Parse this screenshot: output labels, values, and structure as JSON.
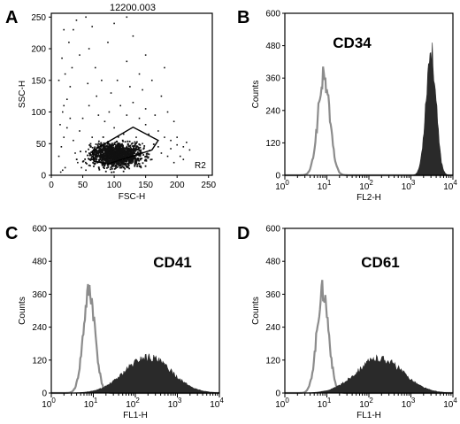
{
  "chart_data": [
    {
      "panel_label": "A",
      "type": "scatter",
      "title": "12200.003",
      "xlabel": "FSC-H",
      "ylabel": "SSC-H",
      "xlim": [
        0,
        256
      ],
      "ylim": [
        0,
        256
      ],
      "x_ticks": [
        "0",
        "50",
        "100",
        "150",
        "200",
        "250"
      ],
      "y_ticks": [
        "0",
        "50",
        "100",
        "150",
        "200",
        "250"
      ],
      "x_tick_values": [
        0,
        50,
        100,
        150,
        200,
        250
      ],
      "y_tick_values": [
        0,
        50,
        100,
        150,
        200,
        250
      ],
      "region_label": "R2",
      "gate_polygon": [
        [
          68,
          22
        ],
        [
          65,
          38
        ],
        [
          130,
          76
        ],
        [
          170,
          55
        ],
        [
          160,
          40
        ],
        [
          90,
          18
        ]
      ],
      "dense_cluster": {
        "center": [
          105,
          32
        ],
        "spread": [
          20,
          9
        ]
      },
      "points": [
        [
          15,
          5
        ],
        [
          18,
          8
        ],
        [
          22,
          12
        ],
        [
          12,
          30
        ],
        [
          16,
          45
        ],
        [
          20,
          60
        ],
        [
          14,
          80
        ],
        [
          18,
          100
        ],
        [
          25,
          120
        ],
        [
          30,
          140
        ],
        [
          22,
          160
        ],
        [
          17,
          185
        ],
        [
          28,
          210
        ],
        [
          35,
          230
        ],
        [
          40,
          245
        ],
        [
          55,
          250
        ],
        [
          60,
          200
        ],
        [
          70,
          170
        ],
        [
          80,
          150
        ],
        [
          95,
          130
        ],
        [
          110,
          110
        ],
        [
          120,
          95
        ],
        [
          140,
          90
        ],
        [
          150,
          80
        ],
        [
          170,
          70
        ],
        [
          180,
          60
        ],
        [
          190,
          55
        ],
        [
          200,
          48
        ],
        [
          210,
          45
        ],
        [
          220,
          40
        ],
        [
          45,
          70
        ],
        [
          50,
          90
        ],
        [
          60,
          110
        ],
        [
          75,
          95
        ],
        [
          85,
          85
        ],
        [
          100,
          75
        ],
        [
          115,
          65
        ],
        [
          130,
          115
        ],
        [
          145,
          135
        ],
        [
          160,
          150
        ],
        [
          175,
          125
        ],
        [
          185,
          100
        ],
        [
          195,
          85
        ],
        [
          38,
          35
        ],
        [
          42,
          20
        ],
        [
          48,
          12
        ],
        [
          55,
          8
        ],
        [
          62,
          15
        ],
        [
          150,
          105
        ],
        [
          165,
          95
        ],
        [
          180,
          170
        ],
        [
          150,
          190
        ],
        [
          130,
          220
        ],
        [
          100,
          240
        ],
        [
          90,
          210
        ],
        [
          120,
          180
        ],
        [
          140,
          160
        ],
        [
          105,
          150
        ],
        [
          65,
          60
        ],
        [
          75,
          50
        ],
        [
          85,
          45
        ],
        [
          160,
          25
        ],
        [
          175,
          35
        ],
        [
          190,
          42
        ],
        [
          205,
          30
        ],
        [
          215,
          52
        ],
        [
          200,
          60
        ],
        [
          25,
          75
        ],
        [
          20,
          110
        ],
        [
          30,
          90
        ],
        [
          35,
          55
        ],
        [
          12,
          150
        ],
        [
          20,
          230
        ],
        [
          45,
          190
        ],
        [
          65,
          235
        ],
        [
          120,
          250
        ],
        [
          33,
          170
        ],
        [
          58,
          145
        ],
        [
          72,
          125
        ],
        [
          92,
          100
        ],
        [
          125,
          140
        ],
        [
          135,
          60
        ],
        [
          145,
          50
        ],
        [
          155,
          65
        ],
        [
          170,
          45
        ],
        [
          185,
          30
        ],
        [
          195,
          20
        ],
        [
          210,
          25
        ]
      ]
    },
    {
      "panel_label": "B",
      "type": "area",
      "title": "CD34",
      "xlabel": "FL2-H",
      "ylabel": "Counts",
      "x_scale": "log",
      "xlim": [
        1,
        10000
      ],
      "ylim": [
        0,
        600
      ],
      "y_ticks": [
        "0",
        "120",
        "240",
        "360",
        "480",
        "600"
      ],
      "y_tick_values": [
        0,
        120,
        240,
        360,
        480,
        600
      ],
      "x_tick_values": [
        1,
        10,
        100,
        1000,
        10000
      ],
      "x_tick_base": [
        "10",
        "10",
        "10",
        "10",
        "10"
      ],
      "x_tick_exponents": [
        "0",
        "1",
        "2",
        "3",
        "4"
      ],
      "series": [
        {
          "role": "control",
          "style": "outline",
          "peak_x": 8.5,
          "peak_y": 365,
          "log_sigma": 0.14
        },
        {
          "role": "stained",
          "style": "filled",
          "peak_x": 3000,
          "peak_y": 460,
          "log_sigma": 0.12
        }
      ]
    },
    {
      "panel_label": "C",
      "type": "area",
      "title": "CD41",
      "xlabel": "FL1-H",
      "ylabel": "Counts",
      "x_scale": "log",
      "xlim": [
        1,
        10000
      ],
      "ylim": [
        0,
        600
      ],
      "y_ticks": [
        "0",
        "120",
        "240",
        "360",
        "480",
        "600"
      ],
      "y_tick_values": [
        0,
        120,
        240,
        360,
        480,
        600
      ],
      "x_tick_values": [
        1,
        10,
        100,
        1000,
        10000
      ],
      "x_tick_base": [
        "10",
        "10",
        "10",
        "10",
        "10"
      ],
      "x_tick_exponents": [
        "0",
        "1",
        "2",
        "3",
        "4"
      ],
      "series": [
        {
          "role": "control",
          "style": "outline",
          "peak_x": 8,
          "peak_y": 370,
          "log_sigma": 0.14
        },
        {
          "role": "stained",
          "style": "filled",
          "peak_x": 200,
          "peak_y": 130,
          "log_sigma": 0.55
        }
      ]
    },
    {
      "panel_label": "D",
      "type": "area",
      "title": "CD61",
      "xlabel": "FL1-H",
      "ylabel": "Counts",
      "x_scale": "log",
      "xlim": [
        1,
        10000
      ],
      "ylim": [
        0,
        600
      ],
      "y_ticks": [
        "0",
        "120",
        "240",
        "360",
        "480",
        "600"
      ],
      "y_tick_values": [
        0,
        120,
        240,
        360,
        480,
        600
      ],
      "x_tick_values": [
        1,
        10,
        100,
        1000,
        10000
      ],
      "x_tick_base": [
        "10",
        "10",
        "10",
        "10",
        "10"
      ],
      "x_tick_exponents": [
        "0",
        "1",
        "2",
        "3",
        "4"
      ],
      "series": [
        {
          "role": "control",
          "style": "outline",
          "peak_x": 8,
          "peak_y": 370,
          "log_sigma": 0.14
        },
        {
          "role": "stained",
          "style": "filled",
          "peak_x": 180,
          "peak_y": 125,
          "log_sigma": 0.55
        }
      ]
    }
  ],
  "colors": {
    "control_line": "#8c8c8c",
    "stained_fill": "#2a2a2a",
    "axis": "#000000",
    "dots": "#111111"
  }
}
